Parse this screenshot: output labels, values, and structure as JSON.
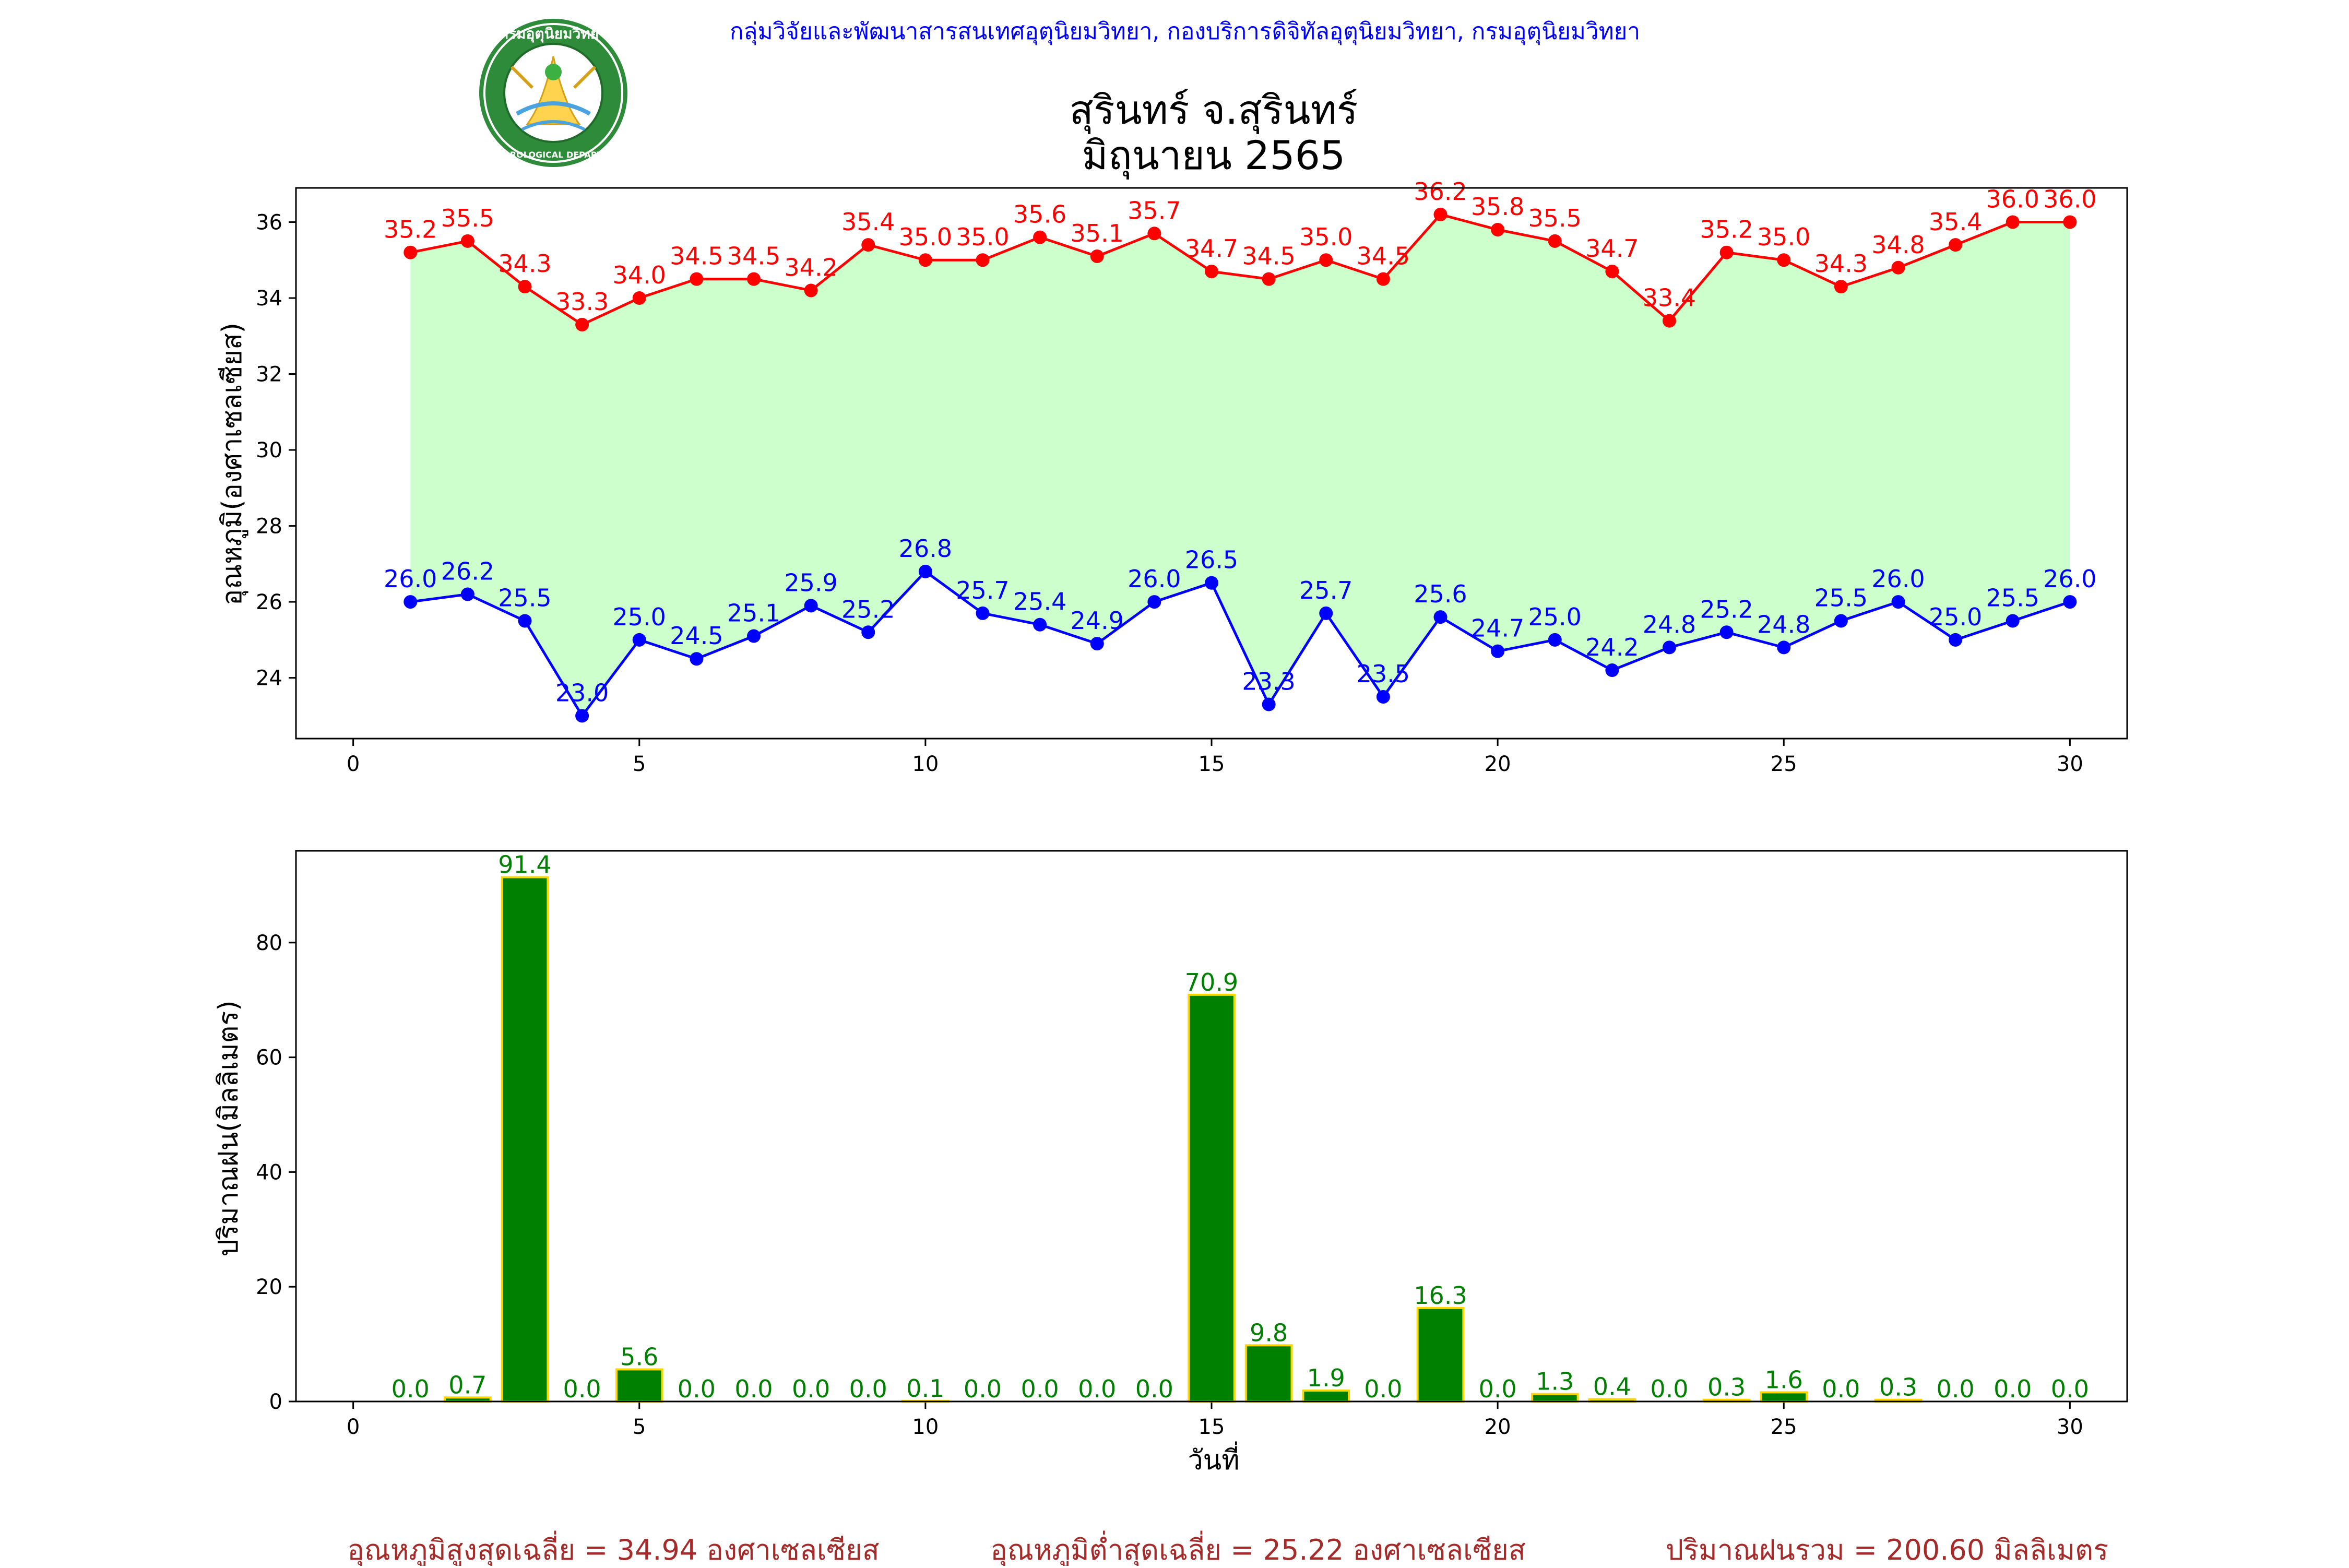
{
  "header": {
    "organization": "กลุ่มวิจัยและพัฒนาสารสนเทศอุตุนิยมวิทยา, กองบริการดิจิทัลอุตุนิยมวิทยา, กรมอุตุนิยมวิทยา",
    "station": "สุรินทร์ จ.สุรินทร์",
    "period": "มิถุนายน 2565"
  },
  "logo": {
    "text_top": "กรมอุตุนิยมวิทยา",
    "text_bottom": "METEOROLOGICAL DEPARTMENT"
  },
  "colors": {
    "tmax": "#ff0000",
    "tmin": "#0000ff",
    "fill": "#ccffcc",
    "bar": "#008000",
    "bar_edge": "#ffd700",
    "label_bar": "#008000",
    "header": "#0000ff",
    "footer": "#a52a2a"
  },
  "chart_data": [
    {
      "type": "line",
      "ylabel": "อุณหภูมิ(องศาเซลเซียส)",
      "xlabel": "",
      "xlim": [
        -1,
        31
      ],
      "ylim": [
        22.4,
        36.9
      ],
      "xticks": [
        0,
        5,
        10,
        15,
        20,
        25,
        30
      ],
      "yticks": [
        24,
        26,
        28,
        30,
        32,
        34,
        36
      ],
      "fill_between": true,
      "x": [
        1,
        2,
        3,
        4,
        5,
        6,
        7,
        8,
        9,
        10,
        11,
        12,
        13,
        14,
        15,
        16,
        17,
        18,
        19,
        20,
        21,
        22,
        23,
        24,
        25,
        26,
        27,
        28,
        29,
        30
      ],
      "series": [
        {
          "key": "tmax",
          "values": [
            35.2,
            35.5,
            34.3,
            33.3,
            34.0,
            34.5,
            34.5,
            34.2,
            35.4,
            35.0,
            35.0,
            35.6,
            35.1,
            35.7,
            34.7,
            34.5,
            35.0,
            34.5,
            36.2,
            35.8,
            35.5,
            34.7,
            33.4,
            35.2,
            35.0,
            34.3,
            34.8,
            35.4,
            36.0,
            36.0
          ]
        },
        {
          "key": "tmin",
          "values": [
            26.0,
            26.2,
            25.5,
            23.0,
            25.0,
            24.5,
            25.1,
            25.9,
            25.2,
            26.8,
            25.7,
            25.4,
            24.9,
            26.0,
            26.5,
            23.3,
            25.7,
            23.5,
            25.6,
            24.7,
            25.0,
            24.2,
            24.8,
            25.2,
            24.8,
            25.5,
            26.0,
            25.0,
            25.5,
            26.0
          ]
        }
      ]
    },
    {
      "type": "bar",
      "ylabel": "ปริมาณฝน(มิลลิเมตร)",
      "xlabel": "วันที่",
      "xlim": [
        -1,
        31
      ],
      "ylim": [
        0,
        96
      ],
      "xticks": [
        0,
        5,
        10,
        15,
        20,
        25,
        30
      ],
      "yticks": [
        0,
        20,
        40,
        60,
        80
      ],
      "x": [
        1,
        2,
        3,
        4,
        5,
        6,
        7,
        8,
        9,
        10,
        11,
        12,
        13,
        14,
        15,
        16,
        17,
        18,
        19,
        20,
        21,
        22,
        23,
        24,
        25,
        26,
        27,
        28,
        29,
        30
      ],
      "values": [
        0.0,
        0.7,
        91.4,
        0.0,
        5.6,
        0.0,
        0.0,
        0.0,
        0.0,
        0.1,
        0.0,
        0.0,
        0.0,
        0.0,
        70.9,
        9.8,
        1.9,
        0.0,
        16.3,
        0.0,
        1.3,
        0.4,
        0.0,
        0.3,
        1.6,
        0.0,
        0.3,
        0.0,
        0.0,
        0.0
      ]
    }
  ],
  "footer": {
    "avg_max": "อุณหภูมิสูงสุดเฉลี่ย = 34.94 องศาเซลเซียส",
    "avg_min": "อุณหภูมิต่ำสุดเฉลี่ย = 25.22 องศาเซลเซียส",
    "rain_total": "ปริมาณฝนรวม = 200.60 มิลลิเมตร"
  }
}
